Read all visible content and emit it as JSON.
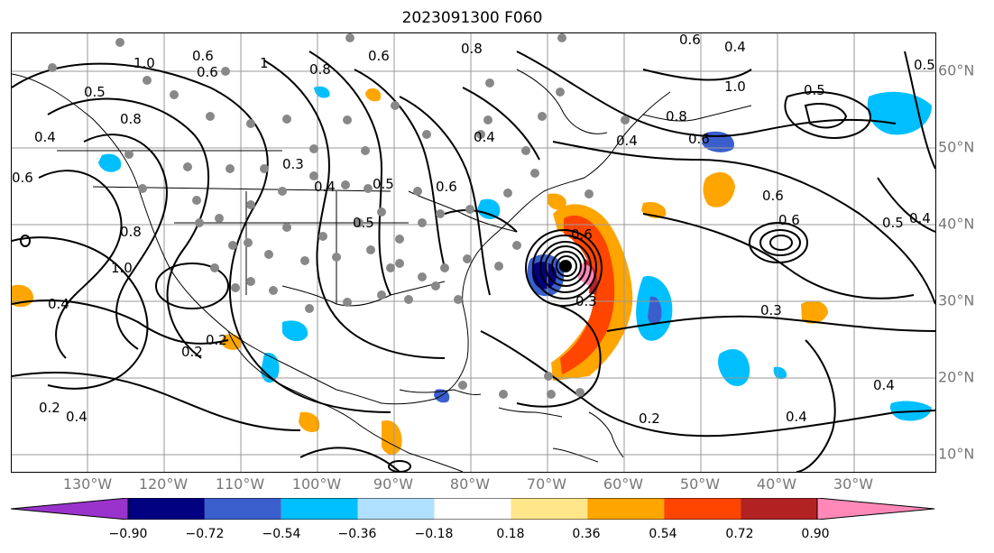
{
  "title": "2023091300 F060",
  "lon_labels": [
    "130°W",
    "120°W",
    "110°W",
    "100°W",
    "90°W",
    "80°W",
    "70°W",
    "60°W",
    "50°W",
    "40°W",
    "30°W"
  ],
  "lat_labels": [
    "60°N",
    "50°N",
    "40°N",
    "30°N",
    "20°N",
    "10°N"
  ],
  "colorbar": {
    "ticks": [
      "−0.90",
      "−0.72",
      "−0.54",
      "−0.36",
      "−0.18",
      "0.18",
      "0.36",
      "0.54",
      "0.72",
      "0.90"
    ],
    "colors": [
      "#9933cc",
      "#000080",
      "#3a5fcd",
      "#00bfff",
      "#b0e0ff",
      "#ffffff",
      "#ffe68a",
      "#ffa500",
      "#ff4500",
      "#b22222",
      "#ff88b8"
    ]
  },
  "contour_labels": [
    "1.0",
    "0.6",
    "0.5",
    "0.8",
    "0.4",
    "1",
    "0.6",
    "0.8",
    "0.5",
    "0.8",
    "0.4",
    "0.6",
    "0.3",
    "0.4",
    "0.5",
    "0.2",
    "0.4",
    "0.6",
    "0.4",
    "0.6",
    "1.0",
    "0.8",
    "0.4",
    "0.3",
    "0.2",
    "0.4",
    "0.2",
    "0.5",
    "1.0",
    "0.8",
    "0.6",
    "0.6",
    "0.5",
    "0.4",
    "0.6",
    "0.3",
    "0.4",
    "0.4",
    "0.2",
    "0.6",
    "0.5",
    "0.6"
  ],
  "station_markers": "gray-dots",
  "storm_center_icon": "hurricane-center-dot"
}
